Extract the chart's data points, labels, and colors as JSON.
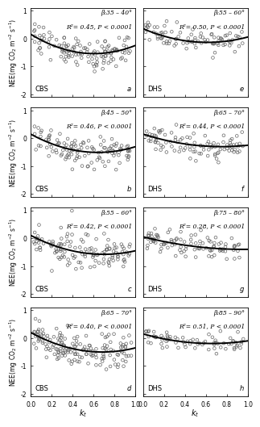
{
  "panels": [
    {
      "label": "a",
      "site": "CBS",
      "beta": "β:35 – 40°",
      "R2": "R²= 0.45, P < 0.0001",
      "col": 0,
      "row": 0,
      "curve_params": [
        1.9,
        -2.3,
        0.15
      ],
      "n": 130,
      "noise": 0.27
    },
    {
      "label": "e",
      "site": "DHS",
      "beta": "β:55 – 60°",
      "R2": "R²= 0.50, P < 0.0001",
      "col": 1,
      "row": 0,
      "curve_params": [
        1.3,
        -1.6,
        0.35
      ],
      "n": 90,
      "noise": 0.2
    },
    {
      "label": "b",
      "site": "CBS",
      "beta": "β:45 – 50°",
      "R2": "R²= 0.46, P < 0.0001",
      "col": 0,
      "row": 1,
      "curve_params": [
        1.6,
        -2.05,
        0.15
      ],
      "n": 120,
      "noise": 0.27
    },
    {
      "label": "f",
      "site": "DHS",
      "beta": "β:65 – 70°",
      "R2": "R²= 0.44, P < 0.0001",
      "col": 1,
      "row": 1,
      "curve_params": [
        0.8,
        -1.2,
        0.15
      ],
      "n": 100,
      "noise": 0.22
    },
    {
      "label": "c",
      "site": "CBS",
      "beta": "β:55 – 60°",
      "R2": "R²= 0.42, P < 0.0001",
      "col": 0,
      "row": 2,
      "curve_params": [
        1.4,
        -1.95,
        0.1
      ],
      "n": 130,
      "noise": 0.3
    },
    {
      "label": "g",
      "site": "DHS",
      "beta": "β:75 – 80°",
      "R2": "R²= 0.28, P < 0.0001",
      "col": 1,
      "row": 2,
      "curve_params": [
        0.5,
        -0.95,
        0.05
      ],
      "n": 100,
      "noise": 0.22
    },
    {
      "label": "d",
      "site": "CBS",
      "beta": "β:65 – 70°",
      "R2": "R²= 0.40, P < 0.0001",
      "col": 0,
      "row": 3,
      "curve_params": [
        1.5,
        -2.05,
        0.2
      ],
      "n": 160,
      "noise": 0.3
    },
    {
      "label": "h",
      "site": "DHS",
      "beta": "β:85 – 90°",
      "R2": "R²= 0.51, P < 0.0001",
      "col": 1,
      "row": 3,
      "curve_params": [
        0.8,
        -1.05,
        0.15
      ],
      "n": 75,
      "noise": 0.18
    }
  ],
  "scatter_color": "none",
  "scatter_edgecolor": "#666666",
  "scatter_size": 7,
  "scatter_lw": 0.5,
  "curve_color": "black",
  "curve_lw": 1.4,
  "bg_color": "white",
  "panel_bg": "white",
  "xlim": [
    0.0,
    1.0
  ],
  "ylim": [
    -2.1,
    1.1
  ],
  "xticks": [
    0.0,
    0.2,
    0.4,
    0.6,
    0.8,
    1.0
  ],
  "yticks": [
    -2,
    -1,
    0,
    1
  ],
  "xlabel": "$k_t$",
  "ylabel_left": "NEE(mg CO$_2$ m$^{-2}$ s$^{-1}$)"
}
